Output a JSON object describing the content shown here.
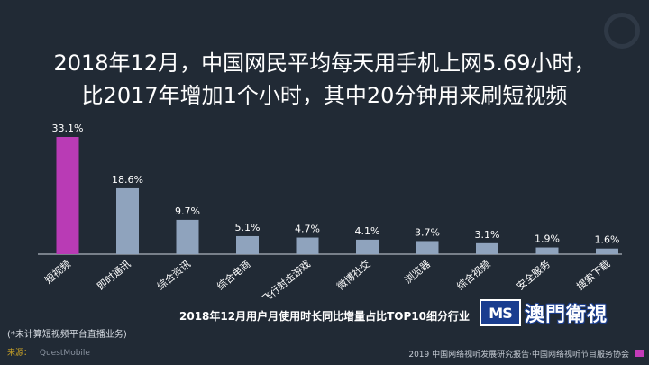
{
  "header": {
    "title_line1": "2018年12月，中国网民平均每天用手机上网5.69小时，",
    "title_line2": "比2017年增加1个小时，其中20分钟用来刷短视频"
  },
  "chart_data": {
    "type": "bar",
    "title": "2018年12月用户月使用时长同比增量占比TOP10细分行业",
    "categories": [
      "短视频",
      "即时通讯",
      "综合资讯",
      "综合电商",
      "飞行射击游戏",
      "微博社交",
      "浏览器",
      "综合视频",
      "安全服务",
      "搜索下载"
    ],
    "values": [
      33.1,
      18.6,
      9.7,
      5.1,
      4.7,
      4.1,
      3.7,
      3.1,
      1.9,
      1.6
    ],
    "value_labels": [
      "33.1%",
      "18.6%",
      "9.7%",
      "5.1%",
      "4.7%",
      "4.1%",
      "3.7%",
      "3.1%",
      "1.9%",
      "1.6%"
    ],
    "ylim": [
      0,
      33.1
    ],
    "grid": false,
    "colors": {
      "highlight": "#b93bb5",
      "default": "#8fa3bd",
      "axis": "#cfd6de"
    }
  },
  "note": "(*未计算短视频平台直播业务)",
  "source": {
    "label": "来源：",
    "value": "QuestMobile"
  },
  "footer": "2019 中国网络视听发展研究报告·中国网络视听节目服务协会",
  "watermark": {
    "badge": "MS",
    "text": "澳門衛視"
  }
}
